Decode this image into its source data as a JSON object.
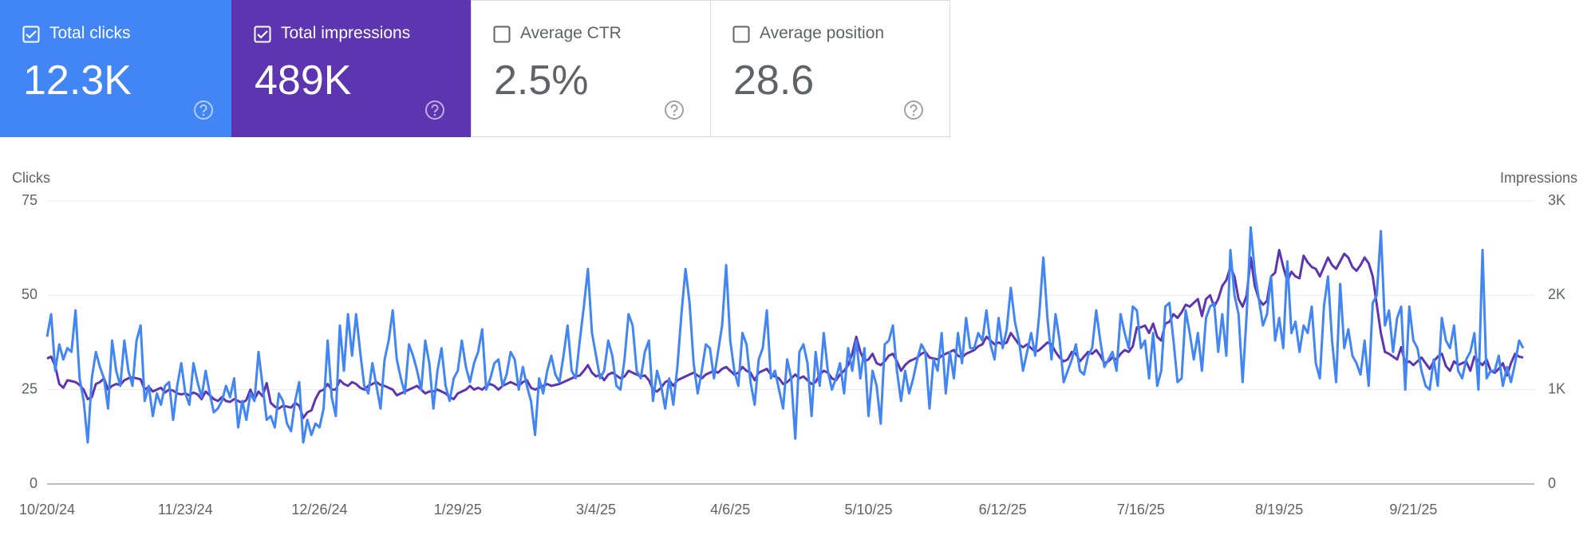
{
  "cards": [
    {
      "label": "Total clicks",
      "value": "12.3K",
      "checked": true,
      "color": "#4285f4"
    },
    {
      "label": "Total impressions",
      "value": "489K",
      "checked": true,
      "color": "#5e35b1"
    },
    {
      "label": "Average CTR",
      "value": "2.5%",
      "checked": false
    },
    {
      "label": "Average position",
      "value": "28.6",
      "checked": false
    }
  ],
  "chart_data": {
    "type": "line",
    "y_label": "Clicks",
    "y2_label": "Impressions",
    "ylim": [
      0,
      75
    ],
    "yticks": [
      0,
      25,
      50,
      75
    ],
    "y2lim": [
      0,
      3000
    ],
    "y2ticks": [
      0,
      {
        "value": 1000,
        "label": "1K"
      },
      {
        "value": 2000,
        "label": "2K"
      },
      {
        "value": 3000,
        "label": "3K"
      }
    ],
    "grid": true,
    "categories": [
      "10/20/24",
      null,
      null,
      null,
      null,
      null,
      null,
      null,
      null,
      null,
      null,
      null,
      null,
      null,
      null,
      null,
      null,
      null,
      null,
      null,
      null,
      null,
      null,
      null,
      null,
      null,
      null,
      null,
      null,
      null,
      null,
      null,
      null,
      null,
      "11/23/24",
      null,
      null,
      null,
      null,
      null,
      null,
      null,
      null,
      null,
      null,
      null,
      null,
      null,
      null,
      null,
      null,
      null,
      null,
      null,
      null,
      null,
      null,
      null,
      null,
      null,
      null,
      null,
      null,
      null,
      null,
      null,
      null,
      "12/26/24",
      null,
      null,
      null,
      null,
      null,
      null,
      null,
      null,
      null,
      null,
      null,
      null,
      null,
      null,
      null,
      null,
      null,
      null,
      null,
      null,
      null,
      null,
      null,
      null,
      null,
      null,
      null,
      null,
      null,
      null,
      null,
      null,
      null,
      "1/29/25",
      null,
      null,
      null,
      null,
      null,
      null,
      null,
      null,
      null,
      null,
      null,
      null,
      null,
      null,
      null,
      null,
      null,
      null,
      null,
      null,
      null,
      null,
      null,
      null,
      null,
      null,
      null,
      null,
      null,
      null,
      null,
      null,
      null,
      "3/4/25",
      null,
      null,
      null,
      null,
      null,
      null,
      null,
      null,
      null,
      null,
      null,
      null,
      null,
      null,
      null,
      null,
      null,
      null,
      null,
      null,
      null,
      null,
      null,
      null,
      null,
      null,
      null,
      null,
      null,
      null,
      null,
      null,
      "4/6/25",
      null,
      null,
      null,
      null,
      null,
      null,
      null,
      null,
      null,
      null,
      null,
      null,
      null,
      null,
      null,
      null,
      null,
      null,
      null,
      null,
      null,
      null,
      null,
      null,
      null,
      null,
      null,
      null,
      null,
      null,
      null,
      null,
      null,
      "5/10/25",
      null,
      null,
      null,
      null,
      null,
      null,
      null,
      null,
      null,
      null,
      null,
      null,
      null,
      null,
      null,
      null,
      null,
      null,
      null,
      null,
      null,
      null,
      null,
      null,
      null,
      null,
      null,
      null,
      null,
      null,
      null,
      null,
      "6/12/25",
      null,
      null,
      null,
      null,
      null,
      null,
      null,
      null,
      null,
      null,
      null,
      null,
      null,
      null,
      null,
      null,
      null,
      null,
      null,
      null,
      null,
      null,
      null,
      null,
      null,
      null,
      null,
      null,
      null,
      null,
      null,
      null,
      null,
      "7/16/25",
      null,
      null,
      null,
      null,
      null,
      null,
      null,
      null,
      null,
      null,
      null,
      null,
      null,
      null,
      null,
      null,
      null,
      null,
      null,
      null,
      null,
      null,
      null,
      null,
      null,
      null,
      null,
      null,
      null,
      null,
      null,
      null,
      null,
      "8/19/25",
      null,
      null,
      null,
      null,
      null,
      null,
      null,
      null,
      null,
      null,
      null,
      null,
      null,
      null,
      null,
      null,
      null,
      null,
      null,
      null,
      null,
      null,
      null,
      null,
      null,
      null,
      null,
      null,
      null,
      null,
      null,
      null,
      "9/21/25",
      null,
      null,
      null,
      null,
      null,
      null,
      null,
      null,
      null,
      null,
      null,
      null,
      null,
      null,
      null,
      null,
      null,
      null,
      null,
      null,
      null,
      null,
      null,
      null,
      null,
      null,
      null
    ],
    "series": [
      {
        "color": "#4285f4",
        "axis": "y",
        "values": [
          39,
          45,
          30,
          37,
          33,
          36,
          35,
          46,
          28,
          22,
          11,
          28,
          35,
          31,
          28,
          20,
          38,
          30,
          26,
          38,
          30,
          26,
          38,
          42,
          22,
          26,
          18,
          24,
          21,
          26,
          27,
          17,
          26,
          32,
          24,
          21,
          32,
          27,
          23,
          30,
          24,
          19,
          20,
          22,
          26,
          23,
          28,
          15,
          22,
          17,
          24,
          22,
          35,
          26,
          17,
          18,
          15,
          24,
          22,
          16,
          14,
          22,
          27,
          11,
          17,
          13,
          16,
          15,
          20,
          38,
          23,
          18,
          42,
          30,
          45,
          34,
          45,
          35,
          26,
          24,
          32,
          26,
          20,
          33,
          38,
          46,
          33,
          28,
          24,
          37,
          34,
          30,
          25,
          38,
          32,
          20,
          30,
          36,
          26,
          22,
          28,
          30,
          38,
          31,
          27,
          32,
          35,
          41,
          25,
          28,
          32,
          33,
          26,
          29,
          35,
          33,
          25,
          31,
          26,
          22,
          13,
          28,
          24,
          30,
          34,
          29,
          27,
          34,
          42,
          30,
          28,
          38,
          47,
          57,
          40,
          34,
          28,
          30,
          38,
          34,
          26,
          25,
          33,
          45,
          42,
          30,
          28,
          35,
          38,
          22,
          30,
          26,
          20,
          28,
          21,
          31,
          45,
          57,
          48,
          32,
          24,
          30,
          37,
          36,
          28,
          35,
          42,
          58,
          38,
          30,
          26,
          40,
          37,
          27,
          21,
          33,
          36,
          46,
          28,
          30,
          25,
          20,
          33,
          28,
          12,
          35,
          37,
          32,
          18,
          35,
          26,
          40,
          30,
          25,
          28,
          32,
          24,
          36,
          30,
          38,
          28,
          36,
          18,
          30,
          26,
          16,
          37,
          38,
          42,
          30,
          22,
          30,
          24,
          28,
          33,
          37,
          35,
          20,
          33,
          30,
          40,
          24,
          35,
          28,
          40,
          32,
          44,
          36,
          36,
          40,
          38,
          46,
          37,
          33,
          44,
          36,
          41,
          52,
          43,
          38,
          30,
          35,
          40,
          34,
          45,
          60,
          44,
          33,
          45,
          38,
          27,
          30,
          33,
          37,
          30,
          29,
          34,
          36,
          46,
          38,
          31,
          33,
          35,
          30,
          45,
          40,
          36,
          47,
          46,
          36,
          38,
          28,
          40,
          26,
          30,
          47,
          48,
          38,
          27,
          28,
          46,
          40,
          33,
          40,
          30,
          44,
          47,
          48,
          35,
          45,
          34,
          62,
          50,
          45,
          27,
          45,
          68,
          56,
          49,
          42,
          45,
          55,
          38,
          44,
          36,
          59,
          40,
          43,
          35,
          42,
          40,
          47,
          32,
          28,
          47,
          55,
          38,
          27,
          53,
          36,
          41,
          34,
          32,
          29,
          38,
          26,
          48,
          50,
          67,
          42,
          46,
          35,
          44,
          47,
          25,
          47,
          38,
          36,
          30,
          26,
          25,
          33,
          26,
          44,
          38,
          36,
          42,
          30,
          28,
          33,
          35,
          40,
          25,
          62,
          28,
          30,
          30,
          34,
          26,
          31,
          27,
          32,
          38,
          36
        ]
      },
      {
        "color": "#5e35b1",
        "axis": "y2",
        "values": [
          1330,
          1350,
          1250,
          1060,
          1020,
          1100,
          1090,
          1080,
          1050,
          1000,
          900,
          920,
          1060,
          1080,
          1120,
          1000,
          1040,
          1060,
          1050,
          1100,
          1120,
          1130,
          1120,
          1110,
          1000,
          1030,
          980,
          1000,
          1020,
          970,
          1000,
          990,
          960,
          950,
          960,
          940,
          970,
          950,
          900,
          980,
          940,
          900,
          880,
          920,
          880,
          870,
          900,
          880,
          860,
          890,
          1000,
          900,
          980,
          930,
          1070,
          860,
          820,
          800,
          830,
          820,
          810,
          860,
          830,
          700,
          760,
          780,
          900,
          980,
          1000,
          1060,
          1000,
          1000,
          1100,
          1060,
          1040,
          1080,
          1060,
          1020,
          1000,
          1040,
          1060,
          1080,
          1050,
          1040,
          1020,
          1000,
          940,
          960,
          980,
          1000,
          1020,
          1040,
          1000,
          960,
          980,
          980,
          1000,
          980,
          960,
          920,
          900,
          960,
          980,
          1000,
          1040,
          1000,
          1020,
          1000,
          1040,
          1060,
          1040,
          1000,
          1040,
          1060,
          1080,
          1060,
          1040,
          1080,
          1100,
          1020,
          1000,
          1020,
          1040,
          1060,
          1040,
          1050,
          1060,
          1080,
          1100,
          1120,
          1140,
          1150,
          1200,
          1260,
          1180,
          1140,
          1160,
          1100,
          1160,
          1180,
          1150,
          1120,
          1140,
          1200,
          1180,
          1160,
          1140,
          1150,
          1100,
          1000,
          980,
          1020,
          1080,
          1100,
          1040,
          1100,
          1120,
          1140,
          1160,
          1180,
          1150,
          1120,
          1160,
          1180,
          1200,
          1180,
          1220,
          1240,
          1200,
          1160,
          1180,
          1240,
          1200,
          1180,
          1100,
          1180,
          1200,
          1220,
          1160,
          1140,
          1120,
          1060,
          1080,
          1120,
          1160,
          1120,
          1140,
          1100,
          1060,
          1080,
          1160,
          1200,
          1180,
          1120,
          1100,
          1160,
          1200,
          1260,
          1380,
          1560,
          1400,
          1300,
          1320,
          1380,
          1280,
          1260,
          1300,
          1360,
          1380,
          1300,
          1200,
          1260,
          1300,
          1320,
          1340,
          1380,
          1400,
          1340,
          1330,
          1320,
          1360,
          1380,
          1400,
          1420,
          1360,
          1340,
          1380,
          1400,
          1420,
          1460,
          1480,
          1560,
          1520,
          1480,
          1500,
          1480,
          1500,
          1600,
          1540,
          1480,
          1450,
          1480,
          1440,
          1400,
          1420,
          1460,
          1500,
          1480,
          1400,
          1340,
          1300,
          1320,
          1400,
          1380,
          1300,
          1350,
          1400,
          1380,
          1420,
          1360,
          1280,
          1300,
          1340,
          1320,
          1380,
          1420,
          1400,
          1460,
          1660,
          1660,
          1680,
          1600,
          1700,
          1560,
          1520,
          1700,
          1720,
          1800,
          1760,
          1820,
          1900,
          1880,
          1920,
          1960,
          1780,
          1960,
          2000,
          1880,
          1960,
          2100,
          2160,
          2300,
          2200,
          1960,
          1880,
          2000,
          2400,
          2100,
          1960,
          1900,
          1940,
          2200,
          2240,
          2480,
          2300,
          2150,
          2250,
          2200,
          2180,
          2420,
          2350,
          2300,
          2280,
          2200,
          2300,
          2400,
          2320,
          2280,
          2360,
          2440,
          2400,
          2300,
          2260,
          2320,
          2400,
          2340,
          2200,
          1900,
          1600,
          1400,
          1380,
          1350,
          1320,
          1450,
          1280,
          1300,
          1260,
          1300,
          1340,
          1280,
          1220,
          1300,
          1350,
          1380,
          1250,
          1200,
          1300,
          1260,
          1280,
          1300,
          1200,
          1350,
          1300,
          1260,
          1320,
          1200,
          1180,
          1220,
          1280,
          1150,
          1280,
          1380,
          1350,
          1340
        ]
      }
    ]
  }
}
